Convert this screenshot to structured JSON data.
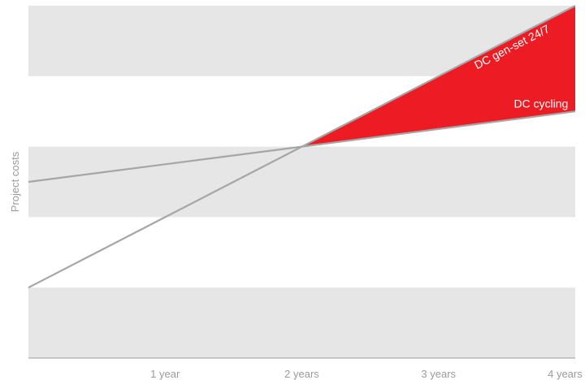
{
  "chart_data": {
    "type": "line",
    "title": "",
    "xlabel": "",
    "ylabel": "Project costs",
    "x": [
      0,
      1,
      2,
      3,
      4
    ],
    "x_tick_labels": [
      "",
      "1 year",
      "2 years",
      "3 years",
      "4 years"
    ],
    "xlim": [
      0,
      4
    ],
    "ylim": [
      0,
      5
    ],
    "y_ticks_shown": false,
    "grid": "alternating horizontal bands",
    "legend": "none (inline labels)",
    "series": [
      {
        "name": "DC gen-set 24/7",
        "values": [
          1.0,
          2.0,
          3.0,
          4.0,
          5.0
        ],
        "color": "#a6a6a6"
      },
      {
        "name": "DC cycling",
        "values": [
          2.5,
          2.75,
          3.0,
          3.25,
          3.5
        ],
        "color": "#a6a6a6"
      }
    ],
    "highlight": {
      "between": [
        "DC gen-set 24/7",
        "DC cycling"
      ],
      "from_x": 2,
      "to_x": 4,
      "color": "#ed1c24"
    },
    "colors": {
      "band": "#e6e6e7",
      "line": "#a6a6a6",
      "axis": "#9a9a9a",
      "text": "#9a9a9a",
      "label_text": "#ffffff"
    }
  }
}
